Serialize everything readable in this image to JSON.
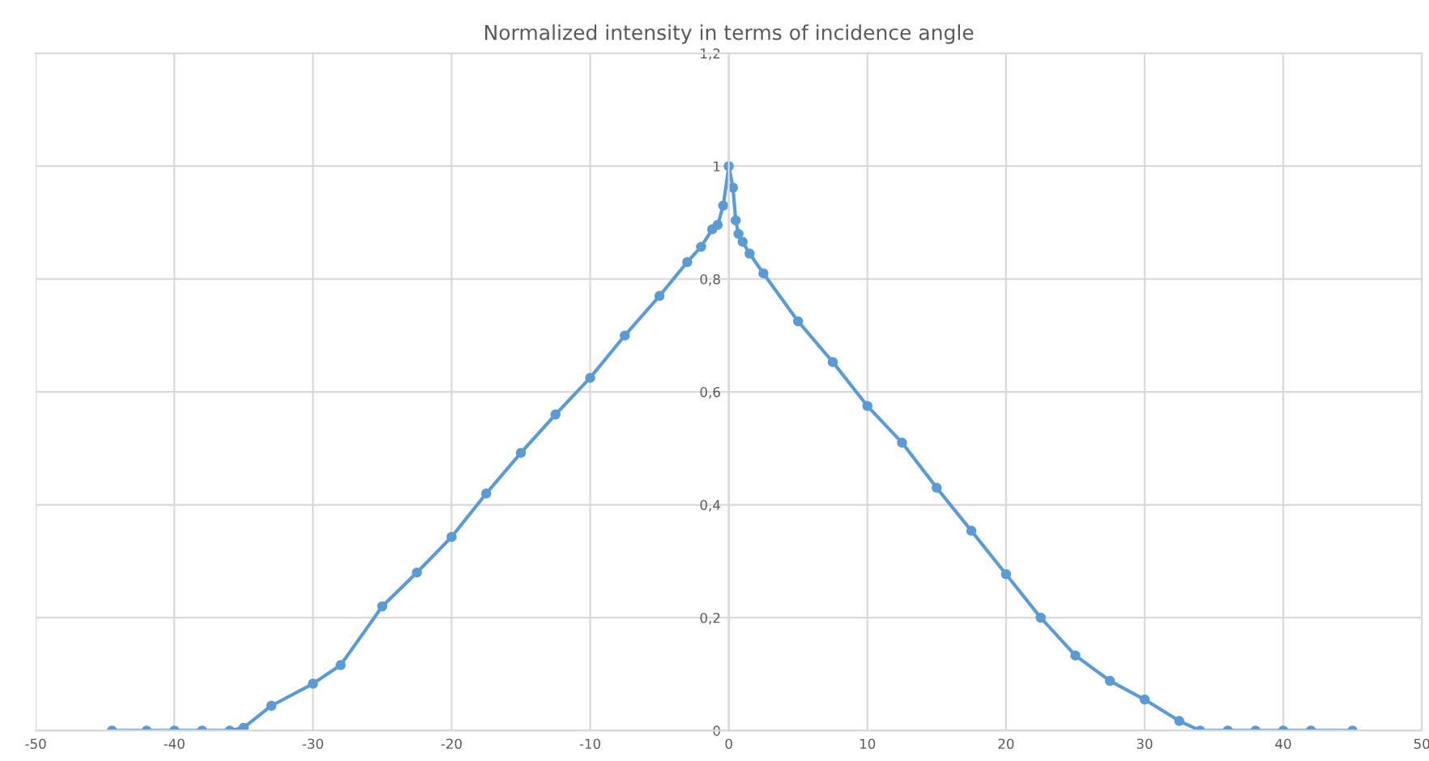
{
  "chart_data": {
    "type": "line",
    "title": "Normalized intensity in terms of incidence angle",
    "series": [
      {
        "color": "#5b9bd5",
        "x": [
          -44.5,
          -42,
          -40,
          -38,
          -36,
          -35,
          -33,
          -30,
          -28,
          -25,
          -22.5,
          -20,
          -17.5,
          -15,
          -12.5,
          -10,
          -7.5,
          -5,
          -3,
          -2,
          -1.2,
          -0.8,
          -0.4,
          0,
          0.3,
          0.5,
          0.7,
          1,
          1.5,
          2.5,
          5,
          7.5,
          10,
          12.5,
          15,
          17.5,
          20,
          22.5,
          25,
          27.5,
          30,
          32.5,
          34,
          36,
          38,
          40,
          42,
          45
        ],
        "values": [
          0,
          0,
          0,
          0,
          0,
          0.005,
          0.044,
          0.083,
          0.116,
          0.22,
          0.28,
          0.343,
          0.42,
          0.492,
          0.56,
          0.625,
          0.7,
          0.77,
          0.83,
          0.857,
          0.888,
          0.896,
          0.93,
          1.0,
          0.962,
          0.904,
          0.88,
          0.866,
          0.845,
          0.81,
          0.725,
          0.653,
          0.575,
          0.51,
          0.43,
          0.354,
          0.277,
          0.2,
          0.133,
          0.088,
          0.055,
          0.017,
          0,
          0,
          0,
          0,
          0,
          0
        ]
      }
    ],
    "xlim": [
      -50,
      50
    ],
    "xticks": [
      -50,
      -40,
      -30,
      -20,
      -10,
      0,
      10,
      20,
      30,
      40,
      50
    ],
    "ylim": [
      0,
      1.2
    ],
    "yticks": [
      {
        "value": 0,
        "label": "0"
      },
      {
        "value": 0.2,
        "label": "0,2"
      },
      {
        "value": 0.4,
        "label": "0,4"
      },
      {
        "value": 0.6,
        "label": "0,6"
      },
      {
        "value": 0.8,
        "label": "0,8"
      },
      {
        "value": 1,
        "label": "1"
      },
      {
        "value": 1.2,
        "label": "1,2"
      }
    ],
    "grid": true,
    "marker": "circle",
    "line_style": "solid",
    "legend": false
  }
}
